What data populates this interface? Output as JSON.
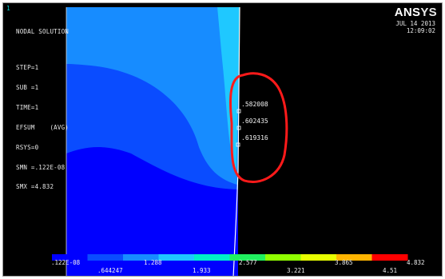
{
  "window_number": "1",
  "header": {
    "lines": [
      "NODAL SOLUTION",
      "STEP=1",
      "SUB =1",
      "TIME=1",
      "EFSUM    (AVG)",
      "RSYS=0",
      "SMN =.122E-08",
      "SMX =4.832"
    ]
  },
  "logo": {
    "main": "ANS",
    "suffix": "YS"
  },
  "date": "JUL 14 2013",
  "time": "12:09:02",
  "probes": [
    ".582008",
    ".602435",
    ".619316"
  ],
  "legend": {
    "colors": [
      "#0000ff",
      "#0a4cff",
      "#178cff",
      "#1fc8ff",
      "#00f0c8",
      "#20f060",
      "#90ff00",
      "#e8ff00",
      "#ffb400",
      "#ff0000"
    ],
    "labels_top": [
      ".122E-08",
      "1.288",
      "2.577",
      "3.865",
      "4.832"
    ],
    "labels_bottom": [
      ".644247",
      "1.933",
      "3.221",
      "4.51"
    ]
  },
  "contour_colors": {
    "band1": "#0000ff",
    "band2": "#0a4cff",
    "band3": "#178cff",
    "band4": "#1fc8ff",
    "background": "#000000",
    "annotation": "#ff1a1a"
  }
}
